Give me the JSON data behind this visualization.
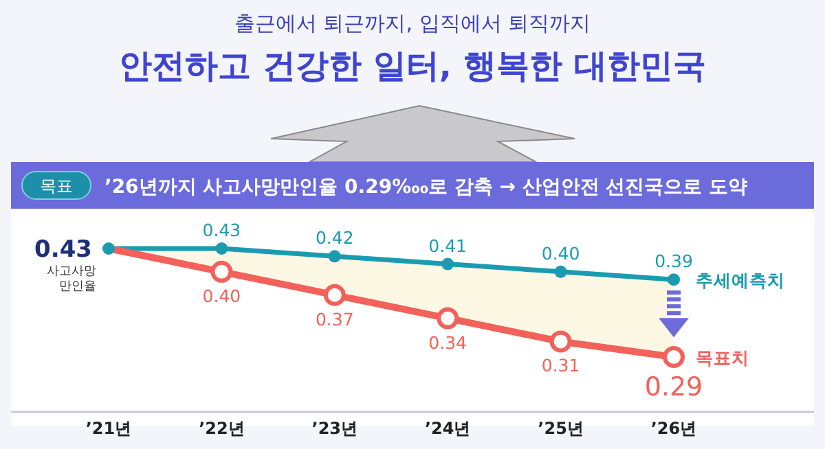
{
  "chart_data": {
    "type": "line",
    "subtitle": "출근에서 퇴근까지, 입직에서 퇴직까지",
    "title": "안전하고 건강한 일터, 행복한 대한민국",
    "annotations": [
      "목표",
      "’26년까지 사고사망만인율 0.29‱로 감축 → 산업안전 선진국으로 도약"
    ],
    "ylabel": "사고사망 만인율",
    "categories": [
      "’21년",
      "’22년",
      "’23년",
      "’24년",
      "’25년",
      "’26년"
    ],
    "series": [
      {
        "name": "추세예측치",
        "color": "#1a9bb0",
        "values": [
          0.43,
          0.43,
          0.42,
          0.41,
          0.4,
          0.39
        ],
        "value_labels": [
          "0.43",
          "0.43",
          "0.42",
          "0.41",
          "0.40",
          "0.39"
        ],
        "marker": "circle",
        "lower": [
          0.43,
          0.4,
          0.37,
          0.34,
          0.31,
          0.29
        ],
        "upper": [
          0.43,
          0.43,
          0.42,
          0.41,
          0.4,
          0.39
        ]
      },
      {
        "name": "목표치",
        "color": "#f2615a",
        "values": [
          0.43,
          0.4,
          0.37,
          0.34,
          0.31,
          0.29
        ],
        "value_labels": [
          null,
          "0.40",
          "0.37",
          "0.34",
          "0.31",
          "0.29"
        ],
        "marker": "circle"
      }
    ]
  }
}
